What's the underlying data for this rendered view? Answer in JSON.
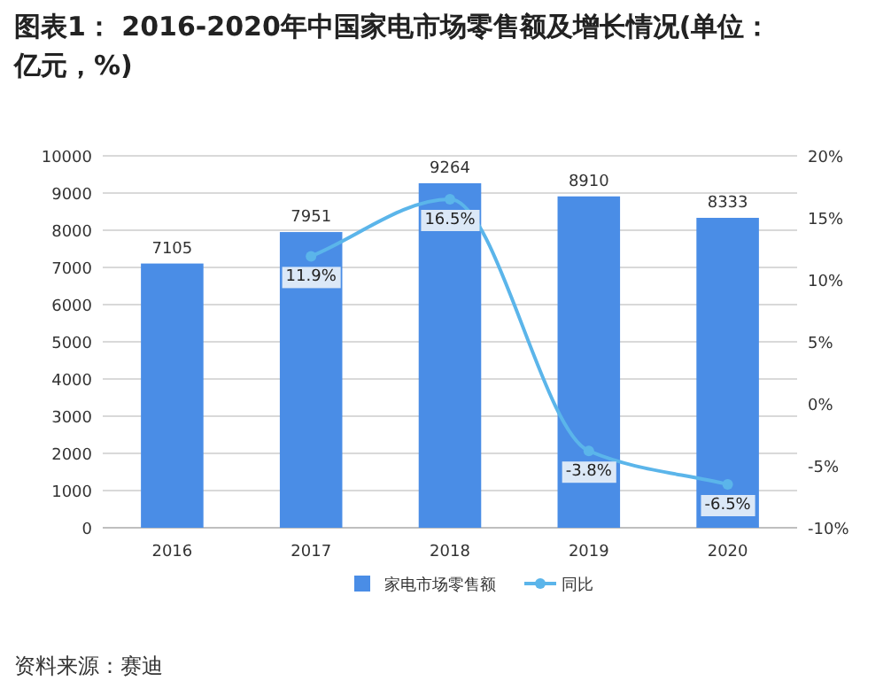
{
  "chart_data": {
    "type": "bar",
    "title": "图表1： 2016-2020年中国家电市场零售额及增长情况(单位：亿元，%)",
    "categories": [
      "2016",
      "2017",
      "2018",
      "2019",
      "2020"
    ],
    "series": [
      {
        "name": "家电市场零售额",
        "color": "#4a8de6",
        "values": [
          7105,
          7951,
          9264,
          8910,
          8333
        ],
        "value_labels": [
          "7105",
          "7951",
          "9264",
          "8910",
          "8333"
        ]
      },
      {
        "name": "同比",
        "type": "line",
        "axis": "y2",
        "color": "#5bb5ea",
        "values": [
          null,
          11.9,
          16.5,
          -3.8,
          -6.5
        ],
        "value_labels": [
          null,
          "11.9%",
          "16.5%",
          "-3.8%",
          "-6.5%"
        ]
      }
    ],
    "ylim": [
      0,
      10000
    ],
    "yticks": [
      0,
      1000,
      2000,
      3000,
      4000,
      5000,
      6000,
      7000,
      8000,
      9000,
      10000
    ],
    "y2lim": [
      -10,
      20
    ],
    "y2ticks": [
      {
        "value": -10,
        "label": "-10%"
      },
      {
        "value": -5,
        "label": "-5%"
      },
      {
        "value": 0,
        "label": "0%"
      },
      {
        "value": 5,
        "label": "5%"
      },
      {
        "value": 10,
        "label": "10%"
      },
      {
        "value": 15,
        "label": "15%"
      },
      {
        "value": 20,
        "label": "20%"
      }
    ],
    "grid": "y",
    "legend": "bottom",
    "marker": "circle",
    "annotations": [
      "资料来源：赛迪"
    ]
  }
}
